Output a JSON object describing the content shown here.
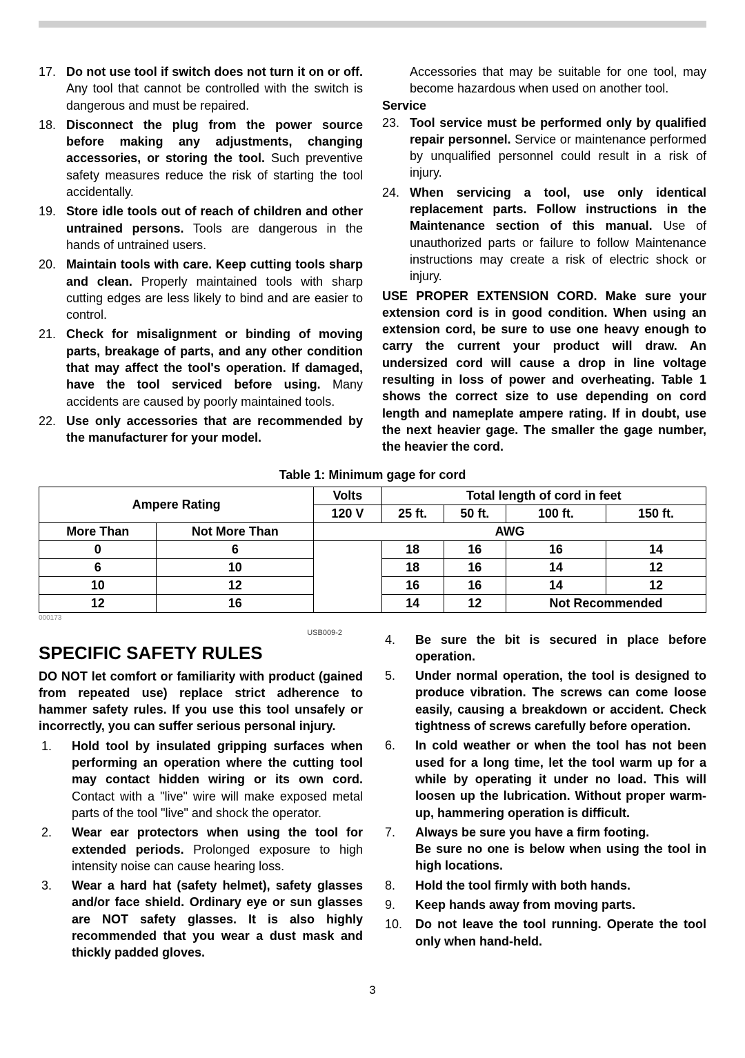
{
  "header_items": [
    {
      "n": "17.",
      "bold": "Do not use tool if switch does not turn it on or off.",
      "rest": " Any tool that cannot be controlled with the switch is dangerous and must be repaired."
    },
    {
      "n": "18.",
      "bold": "Disconnect the plug from the power source before making any adjustments, changing accessories, or storing the tool.",
      "rest": " Such preventive safety measures reduce the risk of starting the tool accidentally."
    },
    {
      "n": "19.",
      "bold": "Store idle tools out of reach of children and other untrained persons.",
      "rest": " Tools are dangerous in the hands of untrained users."
    },
    {
      "n": "20.",
      "bold": "Maintain tools with care. Keep cutting tools sharp and clean.",
      "rest": " Properly maintained tools with sharp cutting edges are less likely to bind and are easier to control."
    },
    {
      "n": "21.",
      "bold": "Check for misalignment or binding of moving parts, breakage of parts, and any other condition that may affect the tool's operation. If damaged, have the tool serviced before using.",
      "rest": " Many accidents are caused by poorly maintained tools."
    },
    {
      "n": "22.",
      "bold": "Use only accessories that are recommended by the manufacturer for your model.",
      "rest": ""
    }
  ],
  "right_top_text": "Accessories that may be suitable for one tool, may become hazardous when used on another tool.",
  "service_label": "Service",
  "service_items": [
    {
      "n": "23.",
      "bold": "Tool service must be performed only by qualified repair personnel.",
      "rest": " Service or maintenance performed by unqualified personnel could result in a risk of injury."
    },
    {
      "n": "24.",
      "bold": "When servicing a tool, use only identical replacement parts. Follow instructions in the Maintenance section of this manual.",
      "rest": " Use of unauthorized parts or failure to follow Maintenance instructions may create a risk of electric shock or injury."
    }
  ],
  "ext_cord_para": "USE PROPER EXTENSION CORD. Make sure your extension cord is in good condition. When using an extension cord, be sure to use one heavy enough to carry the current your product will draw. An undersized cord will cause a drop in line voltage resulting in loss of power and overheating. Table 1 shows the correct size to use depending on cord length and nameplate ampere rating. If in doubt, use the next heavier gage. The smaller the gage number, the heavier the cord.",
  "table": {
    "caption": "Table 1: Minimum gage for cord",
    "ampere_rating": "Ampere Rating",
    "volts": "Volts",
    "volts_val": "120 V",
    "total_length": "Total length of cord in feet",
    "lengths": [
      "25 ft.",
      "50 ft.",
      "100 ft.",
      "150 ft."
    ],
    "more_than": "More Than",
    "not_more_than": "Not More Than",
    "awg": "AWG",
    "rows": [
      {
        "a": "0",
        "b": "6",
        "v": [
          "18",
          "16",
          "16",
          "14"
        ]
      },
      {
        "a": "6",
        "b": "10",
        "v": [
          "18",
          "16",
          "14",
          "12"
        ]
      },
      {
        "a": "10",
        "b": "12",
        "v": [
          "16",
          "16",
          "14",
          "12"
        ]
      },
      {
        "a": "12",
        "b": "16",
        "v": [
          "14",
          "12"
        ],
        "nr": "Not Recommended"
      }
    ]
  },
  "table_id": "000173",
  "doc_code": "USB009-2",
  "specific_title": "SPECIFIC SAFETY RULES",
  "specific_intro": "DO NOT let comfort or familiarity with product (gained from repeated use) replace strict adherence to hammer safety rules. If you use this tool unsafely or incorrectly, you can suffer serious personal injury.",
  "rules_left": [
    {
      "n": "1.",
      "bold": "Hold tool by insulated gripping surfaces when performing an operation where the cutting tool may contact hidden wiring or its own cord.",
      "rest": " Contact with a \"live\" wire will make exposed metal parts of the tool \"live\" and shock the operator."
    },
    {
      "n": "2.",
      "bold": "Wear ear protectors when using the tool for extended periods.",
      "rest": " Prolonged exposure to high intensity noise can cause hearing loss."
    },
    {
      "n": "3.",
      "bold": "Wear a hard hat (safety helmet), safety glasses and/or face shield. Ordinary eye or sun glasses are NOT safety glasses. It is also highly recommended that you wear a dust mask and thickly padded gloves.",
      "rest": ""
    }
  ],
  "rules_right": [
    {
      "n": "4.",
      "bold": "Be sure the bit is secured in place before operation.",
      "rest": ""
    },
    {
      "n": "5.",
      "bold": "Under normal operation, the tool is designed to produce vibration. The screws can come loose easily, causing a breakdown or accident. Check tightness of screws carefully before operation.",
      "rest": ""
    },
    {
      "n": "6.",
      "bold": "In cold weather or when the tool has not been used for a long time, let the tool warm up for a while by operating it under no load. This will loosen up the lubrication. Without proper warm-up, hammering operation is difficult.",
      "rest": ""
    },
    {
      "n": "7.",
      "bold": "Always be sure you have a firm footing.\nBe sure no one is below when using the tool in high locations.",
      "rest": ""
    },
    {
      "n": "8.",
      "bold": "Hold the tool firmly with both hands.",
      "rest": ""
    },
    {
      "n": "9.",
      "bold": "Keep hands away from moving parts.",
      "rest": ""
    },
    {
      "n": "10.",
      "bold": "Do not leave the tool running. Operate the tool only when hand-held.",
      "rest": ""
    }
  ],
  "page_number": "3"
}
